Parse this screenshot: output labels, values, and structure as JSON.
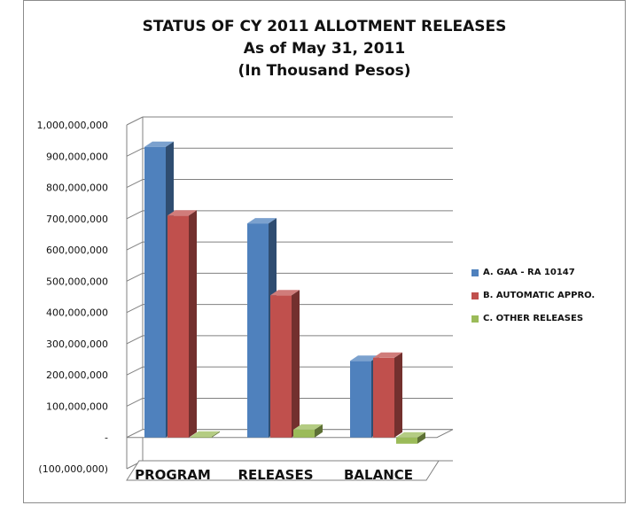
{
  "title_lines": [
    "STATUS OF CY 2011 ALLOTMENT RELEASES",
    "As of May 31, 2011",
    "(In Thousand Pesos)"
  ],
  "colors": {
    "series_a": "#4f81bd",
    "series_b": "#c0504d",
    "series_c": "#9bbb59",
    "grid": "#808080"
  },
  "chart_data": {
    "type": "bar",
    "title": "STATUS OF CY 2011 ALLOTMENT RELEASES\nAs of May 31, 2011\n(In Thousand Pesos)",
    "categories": [
      "PROGRAM",
      "RELEASES",
      "BALANCE"
    ],
    "series": [
      {
        "name": "A.   GAA - RA 10147",
        "values": [
          930000000,
          685000000,
          245000000
        ]
      },
      {
        "name": "B.   AUTOMATIC APPRO.",
        "values": [
          710000000,
          455000000,
          255000000
        ]
      },
      {
        "name": "C.   OTHER RELEASES",
        "values": [
          0,
          25000000,
          -20000000
        ]
      }
    ],
    "ylim": [
      -100000000,
      1000000000
    ],
    "yticks": [
      "(100,000,000)",
      "-",
      "100,000,000",
      "200,000,000",
      "300,000,000",
      "400,000,000",
      "500,000,000",
      "600,000,000",
      "700,000,000",
      "800,000,000",
      "900,000,000",
      "1,000,000,000"
    ],
    "xlabel": "",
    "ylabel": "",
    "grid": true,
    "legend_position": "right",
    "style": "3d-clustered-column"
  }
}
